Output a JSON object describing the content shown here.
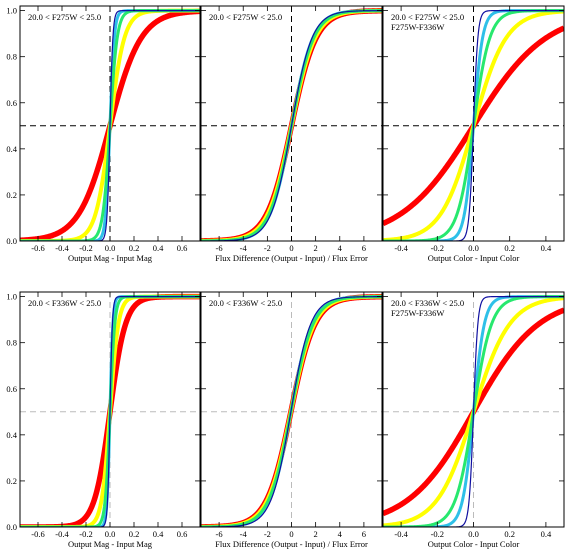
{
  "chart_data": [
    {
      "type": "line",
      "panel_label": [
        "20.0 < F275W < 25.0"
      ],
      "xlabel": "Output Mag - Input Mag",
      "x_ticks": [
        "-0.6",
        "-0.4",
        "-0.2",
        "0.0",
        "0.2",
        "0.4",
        "0.6"
      ],
      "y_ticks": [
        "0.0",
        "0.2",
        "0.4",
        "0.6",
        "0.8",
        "1.0"
      ],
      "xlim": [
        -0.75,
        0.75
      ],
      "ylim": [
        0,
        1.02
      ],
      "reference_lines": {
        "x": 0.0,
        "y": 0.5,
        "style": "dashed",
        "color": "#000000"
      },
      "series": [
        {
          "color": "#1010a0",
          "width": 1.2,
          "cdf": {
            "median": 0.0,
            "scale": 0.012
          }
        },
        {
          "color": "#2ec0e8",
          "width": 3.0,
          "cdf": {
            "median": 0.0,
            "scale": 0.018
          }
        },
        {
          "color": "#27e86e",
          "width": 3.0,
          "cdf": {
            "median": 0.0,
            "scale": 0.03
          }
        },
        {
          "color": "#ffff00",
          "width": 4.0,
          "cdf": {
            "median": 0.0,
            "scale": 0.06
          }
        },
        {
          "color": "#ff0000",
          "width": 5.5,
          "cdf": {
            "median": 0.0,
            "scale": 0.13
          }
        }
      ]
    },
    {
      "type": "line",
      "panel_label": [
        "20.0 < F275W < 25.0"
      ],
      "xlabel": "Flux Difference (Output - Input) / Flux Error",
      "x_ticks": [
        "-6",
        "-4",
        "-2",
        "0",
        "2",
        "4",
        "6"
      ],
      "y_ticks": [
        "0.0",
        "0.2",
        "0.4",
        "0.6",
        "0.8",
        "1.0"
      ],
      "xlim": [
        -7.5,
        7.5
      ],
      "ylim": [
        0,
        1.02
      ],
      "reference_lines": {
        "x": 0.0,
        "y": 0.5,
        "style": "dashed",
        "color": "#000000"
      },
      "series": [
        {
          "color": "#1010a0",
          "width": 1.2,
          "cdf": {
            "median": 0.0,
            "scale": 0.85
          }
        },
        {
          "color": "#2ec0e8",
          "width": 3.0,
          "cdf": {
            "median": 0.0,
            "scale": 0.88
          }
        },
        {
          "color": "#27e86e",
          "width": 3.0,
          "cdf": {
            "median": 0.0,
            "scale": 0.92
          }
        },
        {
          "color": "#ffff00",
          "width": 4.0,
          "cdf": {
            "median": 0.0,
            "scale": 0.98
          }
        },
        {
          "color": "#ff0000",
          "width": 5.5,
          "cdf": {
            "median": 0.0,
            "scale": 1.02
          }
        }
      ]
    },
    {
      "type": "line",
      "panel_label": [
        "20.0 < F275W < 25.0",
        "F275W-F336W"
      ],
      "xlabel": "Output Color - Input Color",
      "x_ticks": [
        "-0.4",
        "-0.2",
        "0.0",
        "0.2",
        "0.4"
      ],
      "y_ticks": [
        "0.0",
        "0.2",
        "0.4",
        "0.6",
        "0.8",
        "1.0"
      ],
      "xlim": [
        -0.5,
        0.5
      ],
      "ylim": [
        0,
        1.02
      ],
      "reference_lines": {
        "x": 0.0,
        "y": 0.5,
        "style": "dashed",
        "color": "#000000"
      },
      "series": [
        {
          "color": "#1010a0",
          "width": 1.2,
          "cdf": {
            "median": 0.0,
            "scale": 0.012
          }
        },
        {
          "color": "#2ec0e8",
          "width": 3.0,
          "cdf": {
            "median": 0.0,
            "scale": 0.025
          }
        },
        {
          "color": "#27e86e",
          "width": 3.0,
          "cdf": {
            "median": 0.0,
            "scale": 0.045
          }
        },
        {
          "color": "#ffff00",
          "width": 4.0,
          "cdf": {
            "median": 0.0,
            "scale": 0.09
          }
        },
        {
          "color": "#ff0000",
          "width": 5.5,
          "cdf": {
            "median": 0.0,
            "scale": 0.2
          }
        }
      ]
    },
    {
      "type": "line",
      "panel_label": [
        "20.0 < F336W < 25.0"
      ],
      "xlabel": "Output Mag - Input Mag",
      "x_ticks": [
        "-0.6",
        "-0.4",
        "-0.2",
        "0.0",
        "0.2",
        "0.4",
        "0.6"
      ],
      "y_ticks": [
        "0.0",
        "0.2",
        "0.4",
        "0.6",
        "0.8",
        "1.0"
      ],
      "xlim": [
        -0.75,
        0.75
      ],
      "ylim": [
        0,
        1.02
      ],
      "reference_lines": {
        "x": 0.0,
        "y": 0.5,
        "style": "dashed",
        "color": "#bbbbbb"
      },
      "series": [
        {
          "color": "#1010a0",
          "width": 1.2,
          "cdf": {
            "median": 0.0,
            "scale": 0.01
          }
        },
        {
          "color": "#2ec0e8",
          "width": 3.0,
          "cdf": {
            "median": 0.0,
            "scale": 0.012
          }
        },
        {
          "color": "#27e86e",
          "width": 3.0,
          "cdf": {
            "median": 0.0,
            "scale": 0.02
          }
        },
        {
          "color": "#ffff00",
          "width": 4.0,
          "cdf": {
            "median": 0.0,
            "scale": 0.035
          }
        },
        {
          "color": "#ff0000",
          "width": 5.5,
          "cdf": {
            "median": 0.0,
            "scale": 0.065
          }
        }
      ]
    },
    {
      "type": "line",
      "panel_label": [
        "20.0 < F336W < 25.0"
      ],
      "xlabel": "Flux Difference (Output - Input) / Flux Error",
      "x_ticks": [
        "-6",
        "-4",
        "-2",
        "0",
        "2",
        "4",
        "6"
      ],
      "y_ticks": [
        "0.0",
        "0.2",
        "0.4",
        "0.6",
        "0.8",
        "1.0"
      ],
      "xlim": [
        -7.5,
        7.5
      ],
      "ylim": [
        0,
        1.02
      ],
      "reference_lines": {
        "x": 0.0,
        "y": 0.5,
        "style": "dashed",
        "color": "#bbbbbb"
      },
      "series": [
        {
          "color": "#1010a0",
          "width": 1.2,
          "cdf": {
            "median": -0.05,
            "scale": 0.82
          }
        },
        {
          "color": "#2ec0e8",
          "width": 3.0,
          "cdf": {
            "median": -0.05,
            "scale": 0.87
          }
        },
        {
          "color": "#27e86e",
          "width": 3.0,
          "cdf": {
            "median": -0.05,
            "scale": 0.92
          }
        },
        {
          "color": "#ffff00",
          "width": 4.0,
          "cdf": {
            "median": -0.05,
            "scale": 0.97
          }
        },
        {
          "color": "#ff0000",
          "width": 5.5,
          "cdf": {
            "median": -0.05,
            "scale": 1.0
          }
        }
      ]
    },
    {
      "type": "line",
      "panel_label": [
        "20.0 < F336W < 25.0",
        "F275W-F336W"
      ],
      "xlabel": "Output Color - Input Color",
      "x_ticks": [
        "-0.4",
        "-0.2",
        "0.0",
        "0.2",
        "0.4"
      ],
      "y_ticks": [
        "0.0",
        "0.2",
        "0.4",
        "0.6",
        "0.8",
        "1.0"
      ],
      "xlim": [
        -0.5,
        0.5
      ],
      "ylim": [
        0,
        1.02
      ],
      "reference_lines": {
        "x": 0.0,
        "y": 0.5,
        "style": "dashed",
        "color": "#bbbbbb"
      },
      "series": [
        {
          "color": "#1010a0",
          "width": 1.2,
          "cdf": {
            "median": 0.0,
            "scale": 0.012
          }
        },
        {
          "color": "#2ec0e8",
          "width": 3.0,
          "cdf": {
            "median": 0.0,
            "scale": 0.03
          }
        },
        {
          "color": "#27e86e",
          "width": 3.0,
          "cdf": {
            "median": 0.0,
            "scale": 0.05
          }
        },
        {
          "color": "#ffff00",
          "width": 4.0,
          "cdf": {
            "median": 0.0,
            "scale": 0.1
          }
        },
        {
          "color": "#ff0000",
          "width": 5.5,
          "cdf": {
            "median": 0.0,
            "scale": 0.18
          }
        }
      ]
    }
  ]
}
